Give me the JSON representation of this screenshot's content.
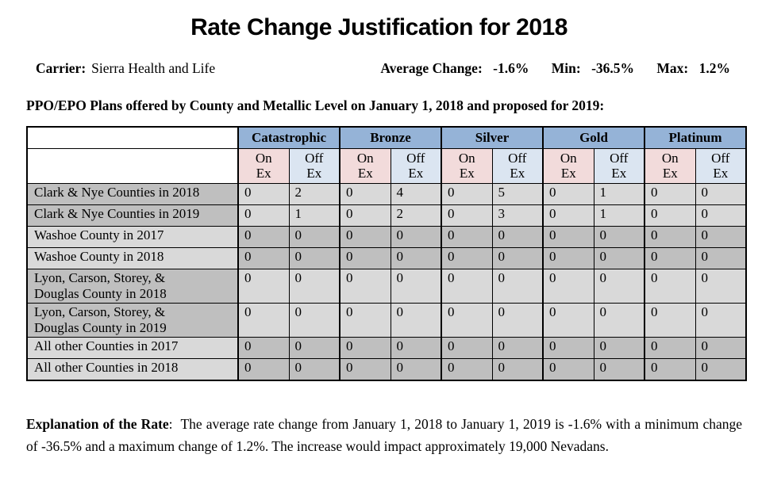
{
  "title": "Rate Change Justification for 2018",
  "header": {
    "carrier_label": "Carrier:",
    "carrier_value": "Sierra Health and Life",
    "average_change_label": "Average Change:",
    "average_change_value": "-1.6%",
    "min_label": "Min:",
    "min_value": "-36.5%",
    "max_label": "Max:",
    "max_value": "1.2%"
  },
  "subtitle": "PPO/EPO Plans offered by County and Metallic Level on January 1, 2018 and proposed for 2019:",
  "table": {
    "metal_levels": [
      "Catastrophic",
      "Bronze",
      "Silver",
      "Gold",
      "Platinum"
    ],
    "exchange_headers": [
      "On\nEx",
      "Off\nEx"
    ],
    "rows": [
      {
        "label": "Clark & Nye Counties in 2018",
        "shade": "label-dark",
        "values": [
          "0",
          "2",
          "0",
          "4",
          "0",
          "5",
          "0",
          "1",
          "0",
          "0"
        ]
      },
      {
        "label": "Clark & Nye Counties in 2019",
        "shade": "label-dark",
        "values": [
          "0",
          "1",
          "0",
          "2",
          "0",
          "3",
          "0",
          "1",
          "0",
          "0"
        ]
      },
      {
        "label": "Washoe County in 2017",
        "shade": "data-dark",
        "values": [
          "0",
          "0",
          "0",
          "0",
          "0",
          "0",
          "0",
          "0",
          "0",
          "0"
        ]
      },
      {
        "label": "Washoe County in 2018",
        "shade": "data-dark",
        "values": [
          "0",
          "0",
          "0",
          "0",
          "0",
          "0",
          "0",
          "0",
          "0",
          "0"
        ]
      },
      {
        "label": "Lyon, Carson, Storey, &\nDouglas County in 2018",
        "shade": "label-dark",
        "values": [
          "0",
          "0",
          "0",
          "0",
          "0",
          "0",
          "0",
          "0",
          "0",
          "0"
        ]
      },
      {
        "label": "Lyon, Carson, Storey, &\nDouglas County in 2019",
        "shade": "label-dark",
        "values": [
          "0",
          "0",
          "0",
          "0",
          "0",
          "0",
          "0",
          "0",
          "0",
          "0"
        ]
      },
      {
        "label": "All other Counties in 2017",
        "shade": "data-dark",
        "values": [
          "0",
          "0",
          "0",
          "0",
          "0",
          "0",
          "0",
          "0",
          "0",
          "0"
        ]
      },
      {
        "label": "All other Counties in 2018",
        "shade": "data-dark",
        "values": [
          "0",
          "0",
          "0",
          "0",
          "0",
          "0",
          "0",
          "0",
          "0",
          "0"
        ]
      }
    ]
  },
  "explanation": {
    "label": "Explanation of the Rate",
    "colon": ":",
    "body": "The average rate change from January 1, 2018 to January 1, 2019 is -1.6% with a minimum change of -36.5% and a maximum change of 1.2%.  The increase would impact approximately 19,000 Nevadans."
  },
  "colors": {
    "metal_header_bg": "#95B3D7",
    "on_ex_bg": "#F2DBDB",
    "off_ex_bg": "#DBE5F1",
    "dark_gray": "#BFBFBF",
    "light_gray": "#D9D9D9"
  }
}
